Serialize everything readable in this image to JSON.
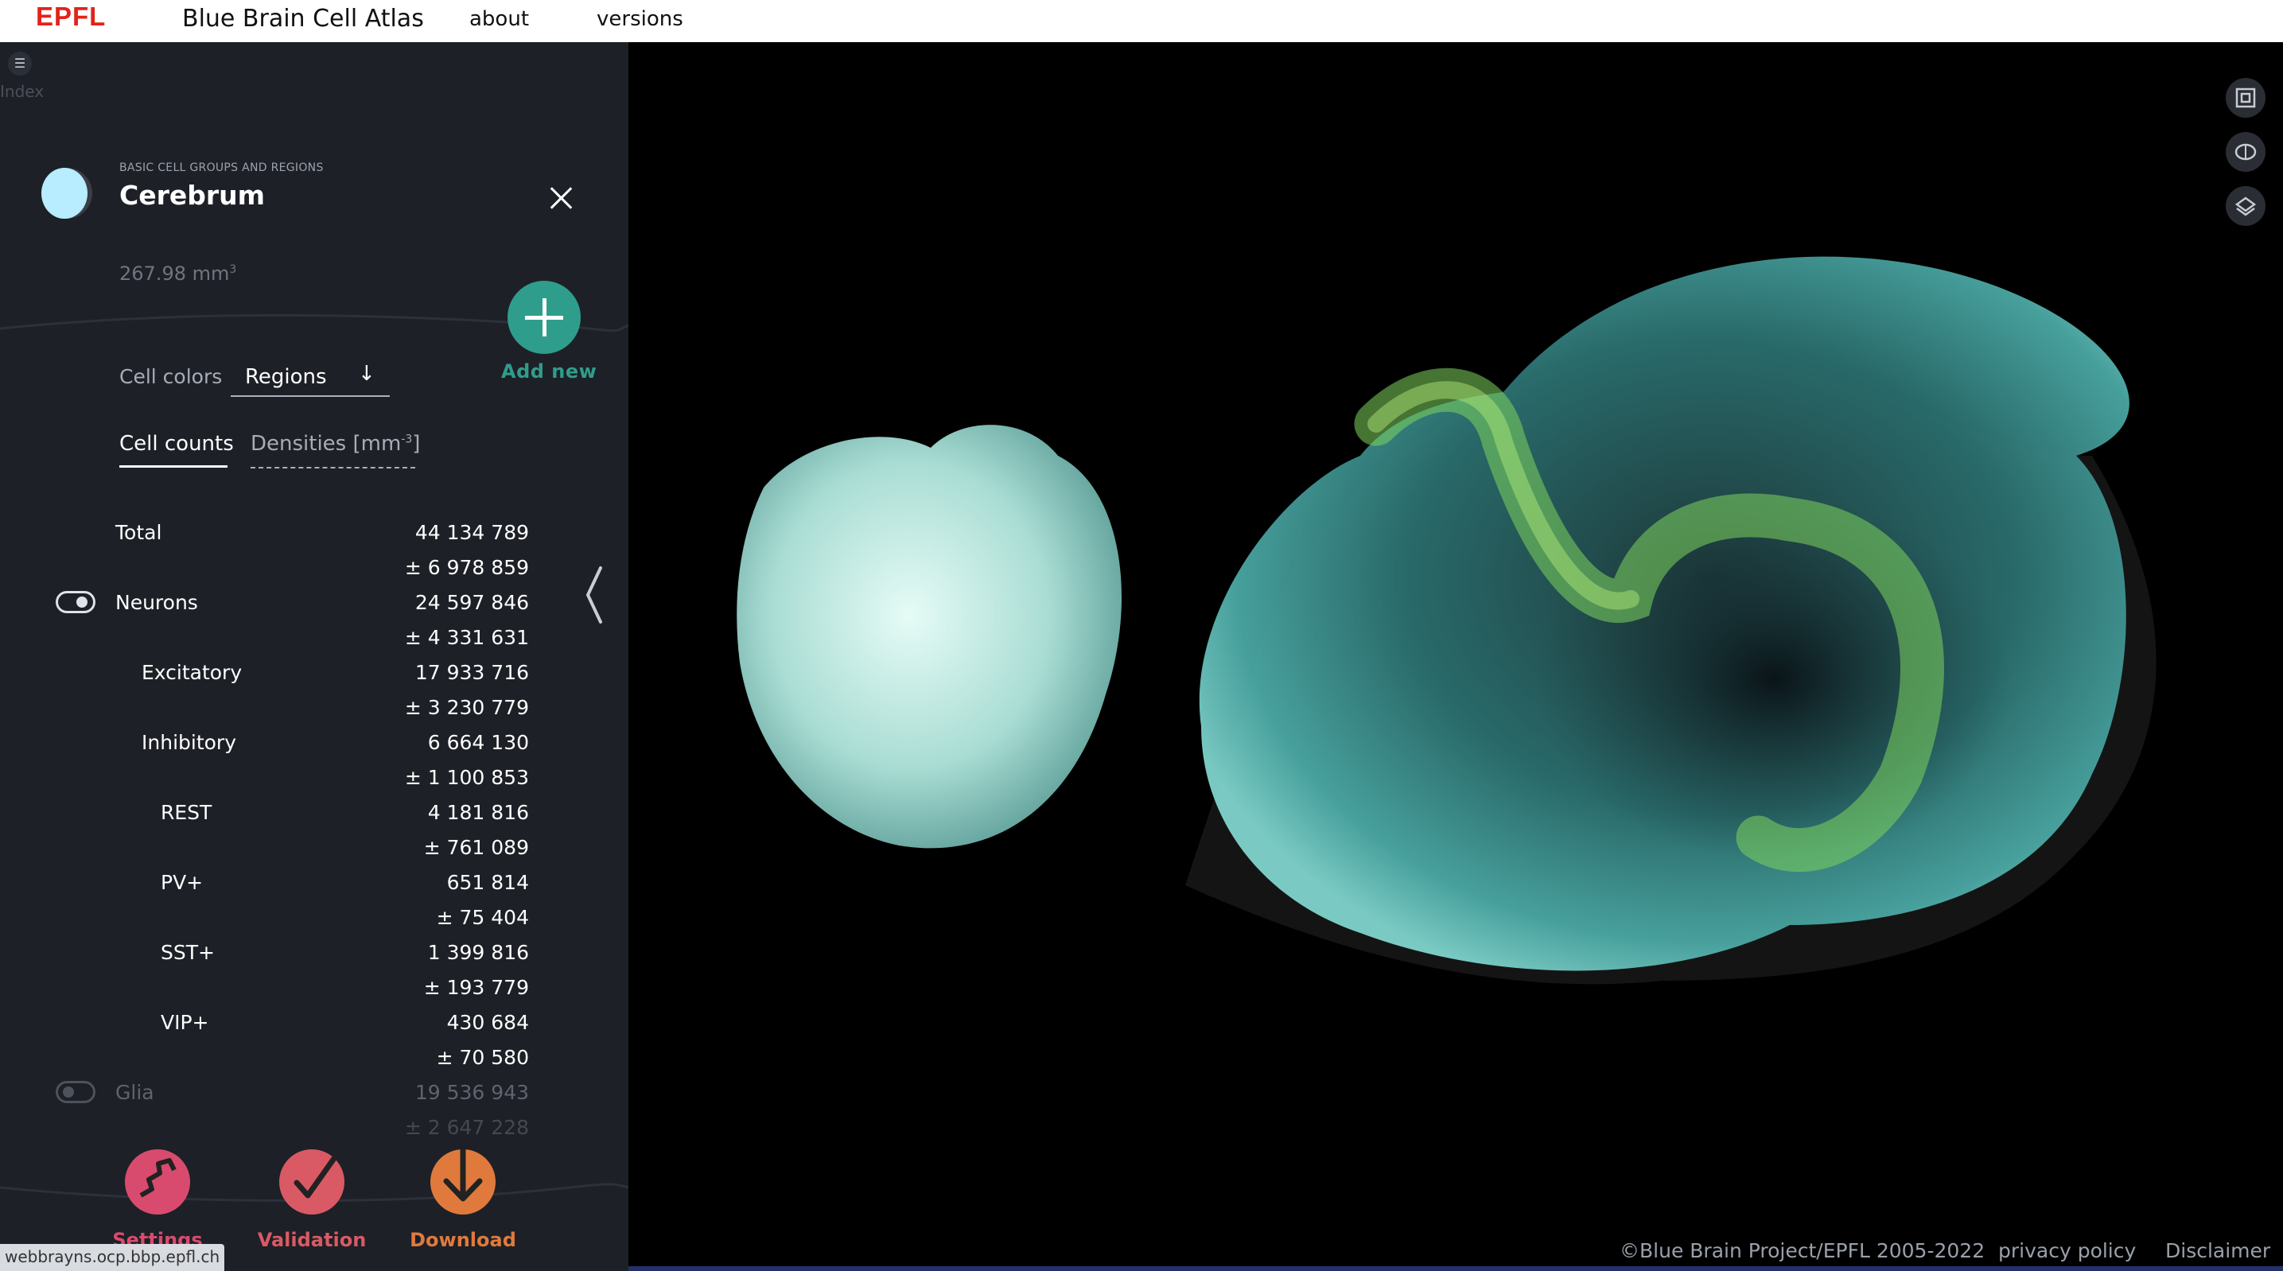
{
  "header": {
    "logo": "EPFL",
    "title": "Blue Brain Cell Atlas",
    "nav": [
      "about",
      "versions"
    ]
  },
  "panel": {
    "index_icon": "menu-icon",
    "index_label": "Index",
    "region_kicker": "BASIC CELL GROUPS AND REGIONS",
    "region_name": "Cerebrum",
    "region_color": "#b8ecff",
    "volume": "267.98 mm",
    "volume_exp": "3",
    "add_new_label": "Add new",
    "cell_colors_label": "Cell colors",
    "cell_colors_value": "Regions",
    "tabs": {
      "counts": "Cell counts",
      "densities": "Densities [mm",
      "densities_exp": "-3",
      "densities_close": "]"
    },
    "rows": [
      {
        "label": "Total",
        "value": "44 134 789",
        "error": "± 6 978 859"
      },
      {
        "label": "Neurons",
        "value": "24 597 846",
        "error": "± 4 331 631",
        "toggle": "on"
      },
      {
        "label": "Excitatory",
        "value": "17 933 716",
        "error": "± 3 230 779"
      },
      {
        "label": "Inhibitory",
        "value": "6 664 130",
        "error": "± 1 100 853"
      },
      {
        "label": "REST",
        "value": "4 181 816",
        "error": "± 761 089"
      },
      {
        "label": "PV+",
        "value": "651 814",
        "error": "± 75 404"
      },
      {
        "label": "SST+",
        "value": "1 399 816",
        "error": "± 193 779"
      },
      {
        "label": "VIP+",
        "value": "430 684",
        "error": "± 70 580"
      },
      {
        "label": "Glia",
        "value": "19 536 943",
        "error": "± 2 647 228",
        "toggle": "off"
      }
    ],
    "actions": [
      {
        "label": "Settings",
        "icon": "settings-icon",
        "color": "#d94b6e"
      },
      {
        "label": "Validation",
        "icon": "validation-icon",
        "color": "#d95a64"
      },
      {
        "label": "Download",
        "icon": "download-icon",
        "color": "#e07a3c"
      }
    ],
    "status_url": "webbrayns.ocp.bbp.epfl.ch"
  },
  "viewer": {
    "tools": [
      "fit-view-icon",
      "brain-view-icon",
      "slice-view-icon"
    ],
    "copyright": "©Blue Brain Project/EPFL 2005-2022",
    "privacy": "privacy policy",
    "disclaimer": "Disclaimer"
  },
  "colors": {
    "accent_teal": "#2f9d8c",
    "epfl_red": "#e2231a",
    "panel_bg": "#1d2027"
  }
}
